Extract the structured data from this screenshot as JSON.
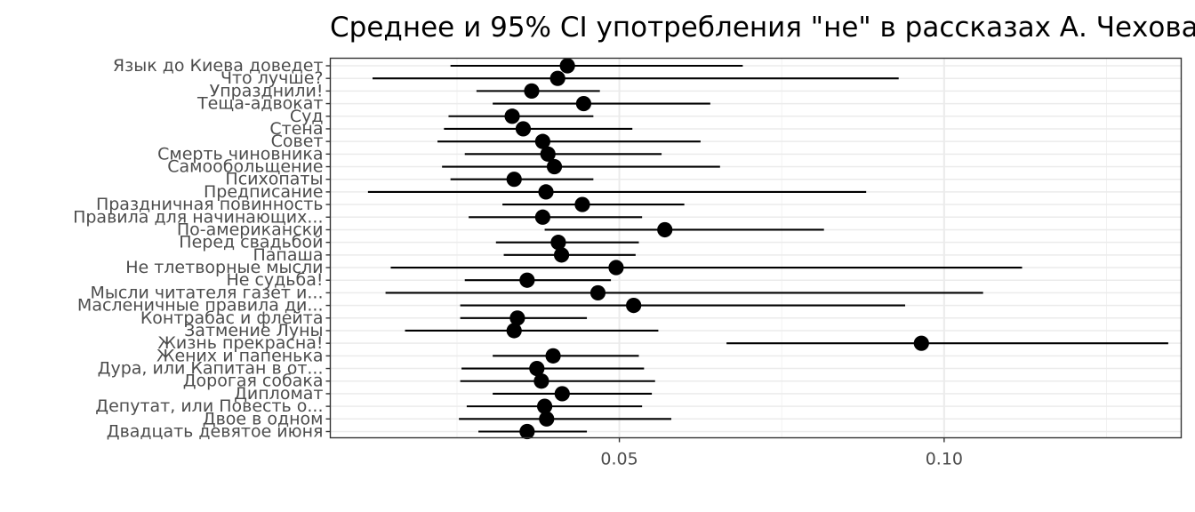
{
  "chart_data": {
    "type": "scatter",
    "title": "Среднее и 95% CI употребления \"не\" в рассказах А. Чехова",
    "xlabel": "",
    "ylabel": "",
    "xlim": [
      0.0055,
      0.1365
    ],
    "x_ticks": [
      0.05,
      0.1
    ],
    "x_tick_labels": [
      "0.05",
      "0.10"
    ],
    "grid": true,
    "categories": [
      "Язык до Киева доведет",
      "Что лучше?",
      "Упразднили!",
      "Теща-адвокат",
      "Суд",
      "Стена",
      "Совет",
      "Смерть чиновника",
      "Самообольщение",
      "Психопаты",
      "Предписание",
      "Праздничная повинность",
      "Правила для начинающих...",
      "По-американски",
      "Перед свадьбой",
      "Папаша",
      "Не тлетворные мысли",
      "Не судьба!",
      "Мысли читателя газет и...",
      "Масленичные правила ди...",
      "Контрабас и флейта",
      "Затмение Луны",
      "Жизнь прекрасна!",
      "Жених и папенька",
      "Дура, или Капитан в от...",
      "Дорогая собака",
      "Дипломат",
      "Депутат, или Повесть о...",
      "Двое в одном",
      "Двадцать девятое июня"
    ],
    "series": [
      {
        "mean": [
          0.042,
          0.0405,
          0.0365,
          0.0445,
          0.0335,
          0.0352,
          0.0382,
          0.039,
          0.04,
          0.0338,
          0.0387,
          0.0443,
          0.0382,
          0.057,
          0.0406,
          0.0411,
          0.0495,
          0.0358,
          0.0467,
          0.0522,
          0.0343,
          0.0338,
          0.0965,
          0.0398,
          0.0373,
          0.038,
          0.0412,
          0.0385,
          0.0388,
          0.0358
        ],
        "lower": [
          0.024,
          0.012,
          0.028,
          0.0305,
          0.0237,
          0.023,
          0.022,
          0.0262,
          0.0227,
          0.024,
          0.0113,
          0.032,
          0.0268,
          0.0385,
          0.031,
          0.0322,
          0.0148,
          0.0262,
          0.014,
          0.0255,
          0.0255,
          0.017,
          0.0665,
          0.0305,
          0.0257,
          0.0255,
          0.0305,
          0.0265,
          0.0253,
          0.0283
        ],
        "upper": [
          0.069,
          0.093,
          0.047,
          0.064,
          0.046,
          0.052,
          0.0625,
          0.0565,
          0.0655,
          0.046,
          0.088,
          0.06,
          0.0535,
          0.0815,
          0.053,
          0.0525,
          0.112,
          0.0487,
          0.106,
          0.094,
          0.045,
          0.056,
          0.1345,
          0.053,
          0.0538,
          0.0555,
          0.055,
          0.0535,
          0.058,
          0.045
        ]
      }
    ]
  }
}
